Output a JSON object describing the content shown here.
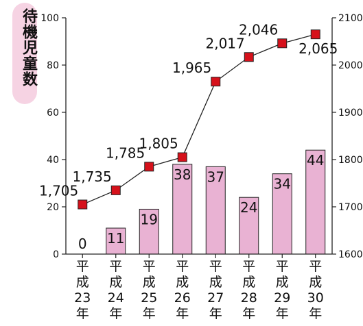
{
  "chart_data": {
    "type": "bar+line",
    "ylabel": "待機児童数",
    "categories": [
      [
        "平",
        "成",
        "23",
        "年"
      ],
      [
        "平",
        "成",
        "24",
        "年"
      ],
      [
        "平",
        "成",
        "25",
        "年"
      ],
      [
        "平",
        "成",
        "26",
        "年"
      ],
      [
        "平",
        "成",
        "27",
        "年"
      ],
      [
        "平",
        "成",
        "28",
        "年"
      ],
      [
        "平",
        "成",
        "29",
        "年"
      ],
      [
        "平",
        "成",
        "30",
        "年"
      ]
    ],
    "bar_series": {
      "values": [
        0,
        11,
        19,
        38,
        37,
        24,
        34,
        44
      ],
      "labels": [
        "0",
        "11",
        "19",
        "38",
        "37",
        "24",
        "34",
        "44"
      ],
      "color": "#e9b2d3",
      "axis": "left"
    },
    "line_series": {
      "values": [
        1705,
        1735,
        1785,
        1805,
        1965,
        2017,
        2046,
        2065
      ],
      "labels": [
        "1,705",
        "1,735",
        "1,785",
        "1,805",
        "1,965",
        "2,017",
        "2,046",
        "2,065"
      ],
      "marker_color": "#d6111b",
      "axis": "right"
    },
    "left_axis": {
      "ylim": [
        0,
        100
      ],
      "ticks": [
        0,
        20,
        40,
        60,
        80,
        100
      ]
    },
    "right_axis": {
      "ylim": [
        1600,
        2100
      ],
      "ticks": [
        1600,
        1700,
        1800,
        1900,
        2000,
        2100
      ]
    },
    "grid": false,
    "legend": "none"
  }
}
